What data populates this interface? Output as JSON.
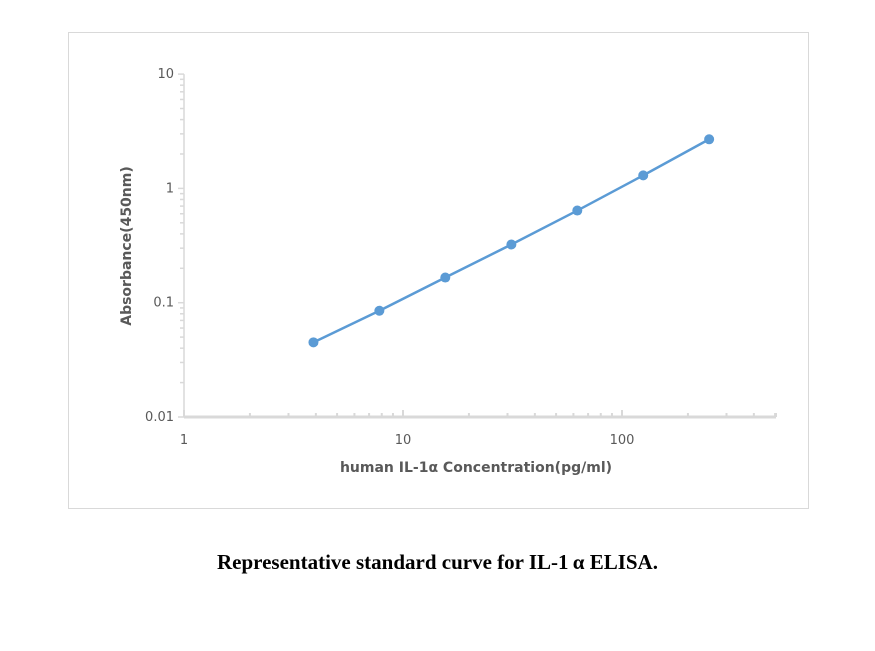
{
  "chart_data": {
    "type": "line",
    "xlabel": "human  IL-1α  Concentration(pg/ml)",
    "ylabel": "Absorbance(450nm)",
    "x_scale": "log",
    "y_scale": "log",
    "xlim": [
      1,
      500
    ],
    "ylim": [
      0.01,
      10
    ],
    "x_ticks": [
      "1",
      "10",
      "100"
    ],
    "y_ticks": [
      "0.01",
      "0.1",
      "1",
      "10"
    ],
    "grid": false,
    "legend": "none",
    "series": [
      {
        "x": [
          3.9,
          7.8,
          15.6,
          31.25,
          62.5,
          125,
          250
        ],
        "y": [
          0.045,
          0.085,
          0.166,
          0.323,
          0.64,
          1.3,
          2.69
        ],
        "color": "#5b9bd5",
        "markers": true
      }
    ],
    "axis_color": "#d9d9d9"
  },
  "caption": "Representative standard curve for IL-1 α   ELISA."
}
